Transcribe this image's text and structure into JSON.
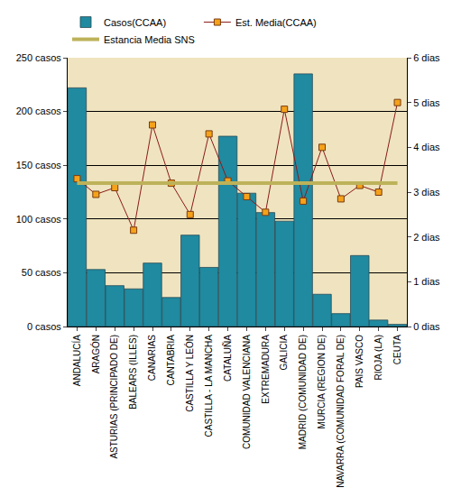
{
  "chart_data": {
    "type": "bar",
    "categories": [
      "ANDALUCÍA",
      "ARAGÓN",
      "ASTURIAS (PRINCIPADO DE)",
      "BALEARS (ILLES)",
      "CANARIAS",
      "CANTABRIA",
      "CASTILLA Y LEÓN",
      "CASTILLA - LA MANCHA",
      "CATALUÑA",
      "COMUNIDAD VALENCIANA",
      "EXTREMADURA",
      "GALICIA",
      "MADRID (COMUNIDAD DE)",
      "MURCIA (REGION DE)",
      "NAVARRA (COMUNIDAD FORAL DE)",
      "PAIS VASCO",
      "RIOJA (LA)",
      "CEUTA"
    ],
    "series": [
      {
        "name": "Casos(CCAA)",
        "type": "bar",
        "color": "#1f8aa0",
        "values": [
          222,
          53,
          38,
          35,
          59,
          27,
          85,
          55,
          177,
          124,
          106,
          98,
          235,
          30,
          12,
          66,
          6,
          2
        ]
      },
      {
        "name": "Est. Media(CCAA)",
        "type": "line",
        "axis": "y2",
        "color": "#8b1a1a",
        "marker": "square",
        "values": [
          3.3,
          2.95,
          3.1,
          2.15,
          4.5,
          3.2,
          2.5,
          4.3,
          3.25,
          2.9,
          2.55,
          4.85,
          2.8,
          4.0,
          2.85,
          3.15,
          3.0,
          5.0
        ]
      },
      {
        "name": "Estancia Media SNS",
        "type": "line",
        "axis": "y2",
        "color": "#bdb25a",
        "values": [
          3.2,
          3.2,
          3.2,
          3.2,
          3.2,
          3.2,
          3.2,
          3.2,
          3.2,
          3.2,
          3.2,
          3.2,
          3.2,
          3.2,
          3.2,
          3.2,
          3.2,
          3.2
        ]
      }
    ],
    "ylim": [
      0,
      250
    ],
    "yticks": [
      {
        "value": 0,
        "label": "0 casos"
      },
      {
        "value": 50,
        "label": "50 casos"
      },
      {
        "value": 100,
        "label": "100 casos"
      },
      {
        "value": 150,
        "label": "150 casos"
      },
      {
        "value": 200,
        "label": "200 casos"
      },
      {
        "value": 250,
        "label": "250 casos"
      }
    ],
    "y2lim": [
      0,
      6
    ],
    "y2ticks": [
      {
        "value": 0,
        "label": "0 dias"
      },
      {
        "value": 1,
        "label": "1 dias"
      },
      {
        "value": 2,
        "label": "2 dias"
      },
      {
        "value": 3,
        "label": "3 dias"
      },
      {
        "value": 4,
        "label": "4 dias"
      },
      {
        "value": 5,
        "label": "5 dias"
      },
      {
        "value": 6,
        "label": "6 dias"
      }
    ],
    "grid": true,
    "legend": "top"
  }
}
